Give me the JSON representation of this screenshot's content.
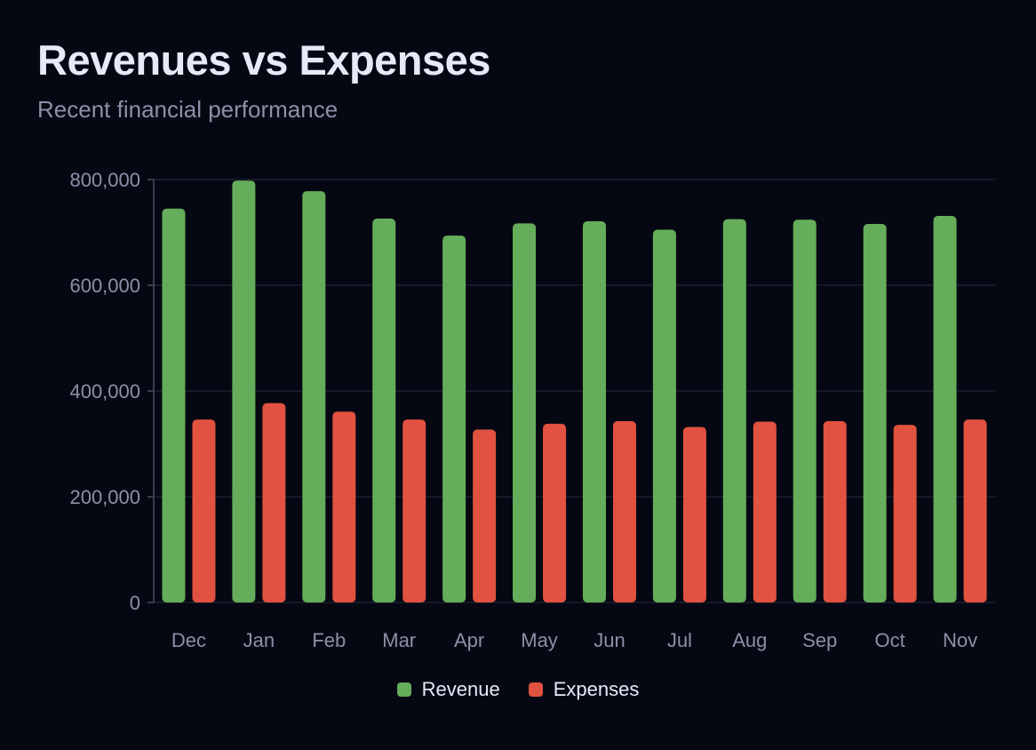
{
  "title": "Revenues vs Expenses",
  "subtitle": "Recent financial performance",
  "colors": {
    "revenue": "#65ad5a",
    "expenses": "#e15240",
    "grid": "#1c2130",
    "axis": "#4a5061",
    "tick_text": "#8a91a8"
  },
  "chart_data": {
    "type": "bar",
    "title": "Revenues vs Expenses",
    "subtitle": "Recent financial performance",
    "categories": [
      "Dec",
      "Jan",
      "Feb",
      "Mar",
      "Apr",
      "May",
      "Jun",
      "Jul",
      "Aug",
      "Sep",
      "Oct",
      "Nov"
    ],
    "series": [
      {
        "name": "Revenue",
        "color": "#65ad5a",
        "values": [
          745000,
          798000,
          778000,
          726000,
          694000,
          717000,
          721000,
          705000,
          725000,
          724000,
          716000,
          731000
        ]
      },
      {
        "name": "Expenses",
        "color": "#e15240",
        "values": [
          346000,
          377000,
          361000,
          346000,
          327000,
          338000,
          343000,
          332000,
          342000,
          343000,
          336000,
          346000
        ]
      }
    ],
    "ylim": [
      0,
      800000
    ],
    "y_ticks": [
      "0",
      "200,000",
      "400,000",
      "600,000",
      "800,000"
    ],
    "y_tick_values": [
      0,
      200000,
      400000,
      600000,
      800000
    ],
    "grid": true,
    "legend_position": "bottom-center"
  }
}
